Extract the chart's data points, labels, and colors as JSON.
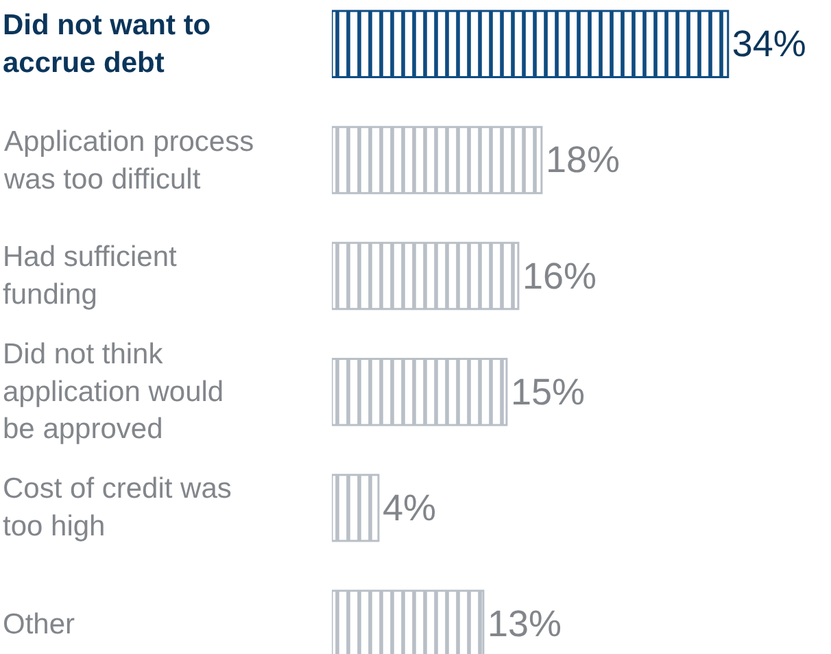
{
  "chart_data": {
    "type": "bar",
    "orientation": "horizontal",
    "categories": [
      "Did not want to accrue debt",
      "Application process was too difficult",
      "Had sufficient funding",
      "Did not think application would be approved",
      "Cost of credit was too high",
      "Other"
    ],
    "values": [
      34,
      18,
      16,
      15,
      4,
      13
    ],
    "value_labels": [
      "34%",
      "18%",
      "16%",
      "15%",
      "4%",
      "13%"
    ],
    "colors": [
      "#0f4c81",
      "#b9bfc7",
      "#b9bfc7",
      "#b9bfc7",
      "#b9bfc7",
      "#b9bfc7"
    ],
    "data_labels": false
  }
}
